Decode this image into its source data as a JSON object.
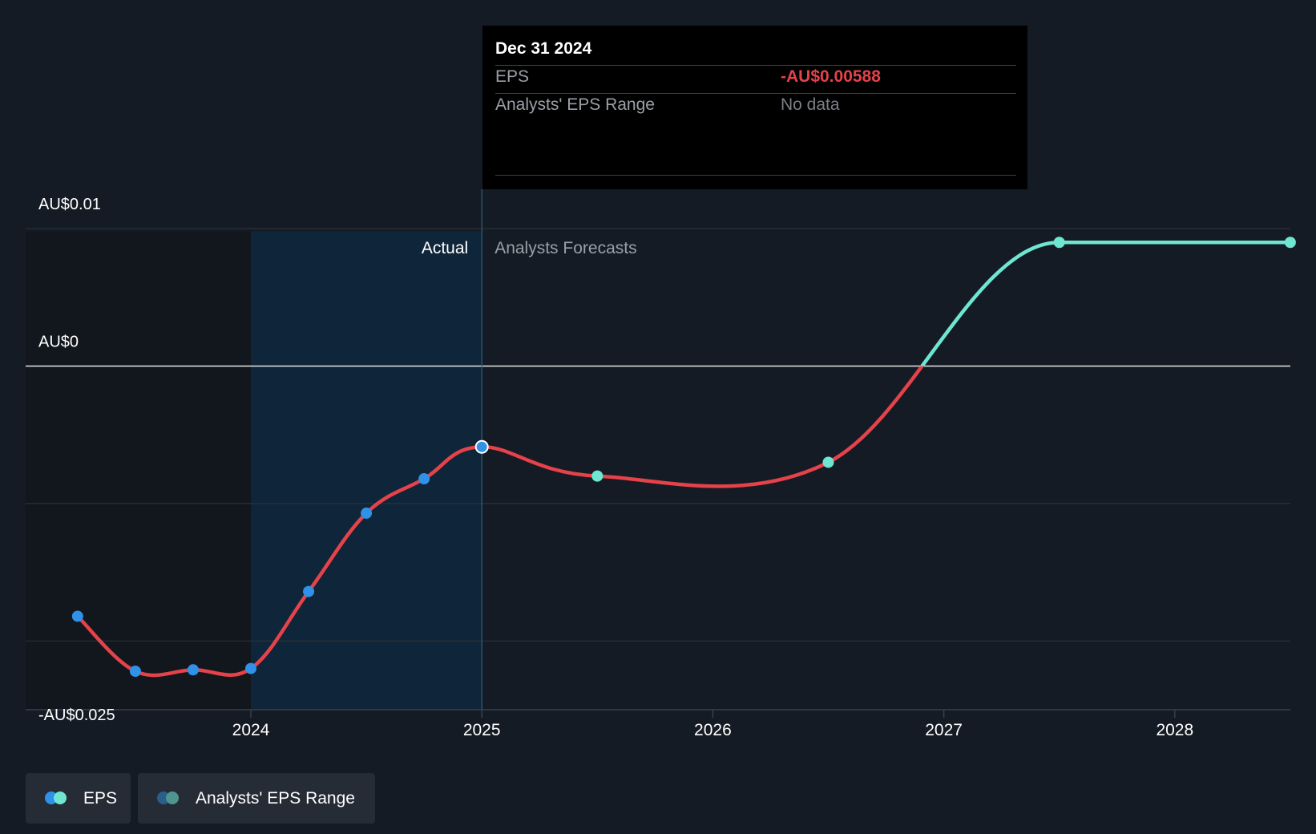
{
  "chart_data": {
    "type": "line",
    "x_axis": {
      "min": 2023.0,
      "max": 2028.5,
      "ticks": [
        2024,
        2025,
        2026,
        2027,
        2028
      ],
      "tick_labels": [
        "2024",
        "2025",
        "2026",
        "2027",
        "2028"
      ]
    },
    "y_axis": {
      "min": -0.0275,
      "max": 0.0135,
      "labeled_ticks": [
        {
          "value": 0.01,
          "label": "AU$0.01"
        },
        {
          "value": 0,
          "label": "AU$0"
        },
        {
          "value": -0.025,
          "label": "-AU$0.025"
        }
      ],
      "gridlines": [
        0.01,
        0,
        -0.01,
        -0.02
      ]
    },
    "regions": {
      "actual_label": "Actual",
      "forecast_label": "Analysts Forecasts",
      "divider_x": 2025.0,
      "highlight_start_x": 2024.0
    },
    "series": [
      {
        "name": "EPS",
        "actual_points": [
          {
            "x": 2023.25,
            "y": -0.0182
          },
          {
            "x": 2023.5,
            "y": -0.0222
          },
          {
            "x": 2023.75,
            "y": -0.0221
          },
          {
            "x": 2024.0,
            "y": -0.022
          },
          {
            "x": 2024.25,
            "y": -0.0164
          },
          {
            "x": 2024.5,
            "y": -0.0107
          },
          {
            "x": 2024.75,
            "y": -0.0082
          },
          {
            "x": 2025.0,
            "y": -0.00588
          }
        ],
        "forecast_points": [
          {
            "x": 2025.5,
            "y": -0.008
          },
          {
            "x": 2026.5,
            "y": -0.007
          },
          {
            "x": 2027.5,
            "y": 0.009
          },
          {
            "x": 2028.5,
            "y": 0.009
          }
        ]
      }
    ],
    "tooltip": {
      "date": "Dec 31 2024",
      "rows": [
        {
          "label": "EPS",
          "value": "-AU$0.00588"
        },
        {
          "label": "Analysts' EPS Range",
          "value": "No data"
        }
      ]
    },
    "legend": [
      {
        "label": "EPS"
      },
      {
        "label": "Analysts' EPS Range"
      }
    ]
  },
  "colors": {
    "background": "#151b24",
    "negative_line": "#e5424a",
    "positive_line": "#6ee6d2",
    "actual_point": "#2f92e8",
    "forecast_point": "#6ee6d2",
    "highlight": "#0f2539",
    "grid": "#2c323b",
    "zero_line": "#e6e6e6",
    "tooltip_negative": "#e5424a",
    "tooltip_muted": "#7a7f86",
    "range_dot_a": "#2a5f8a",
    "range_dot_b": "#4d9690"
  }
}
